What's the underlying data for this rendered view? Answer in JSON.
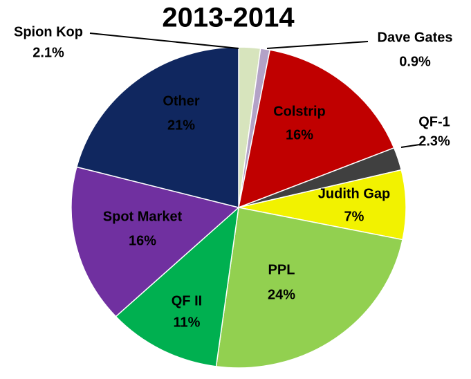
{
  "chart_data": {
    "type": "pie",
    "title": "2013-2014",
    "categories": [
      "Spion Kop",
      "Dave Gates",
      "Colstrip",
      "QF-1",
      "Judith Gap",
      "PPL",
      "QF II",
      "Spot Market",
      "Other"
    ],
    "values": [
      2.1,
      0.9,
      16,
      2.3,
      7,
      24,
      11,
      16,
      21
    ],
    "value_labels": [
      "2.1%",
      "0.9%",
      "16%",
      "2.3%",
      "7%",
      "24%",
      "11%",
      "16%",
      "21%"
    ],
    "colors": [
      "#d7e4bd",
      "#b3a2c7",
      "#c00000",
      "#404040",
      "#f2f200",
      "#92d050",
      "#00b050",
      "#7030a0",
      "#10275f"
    ]
  }
}
